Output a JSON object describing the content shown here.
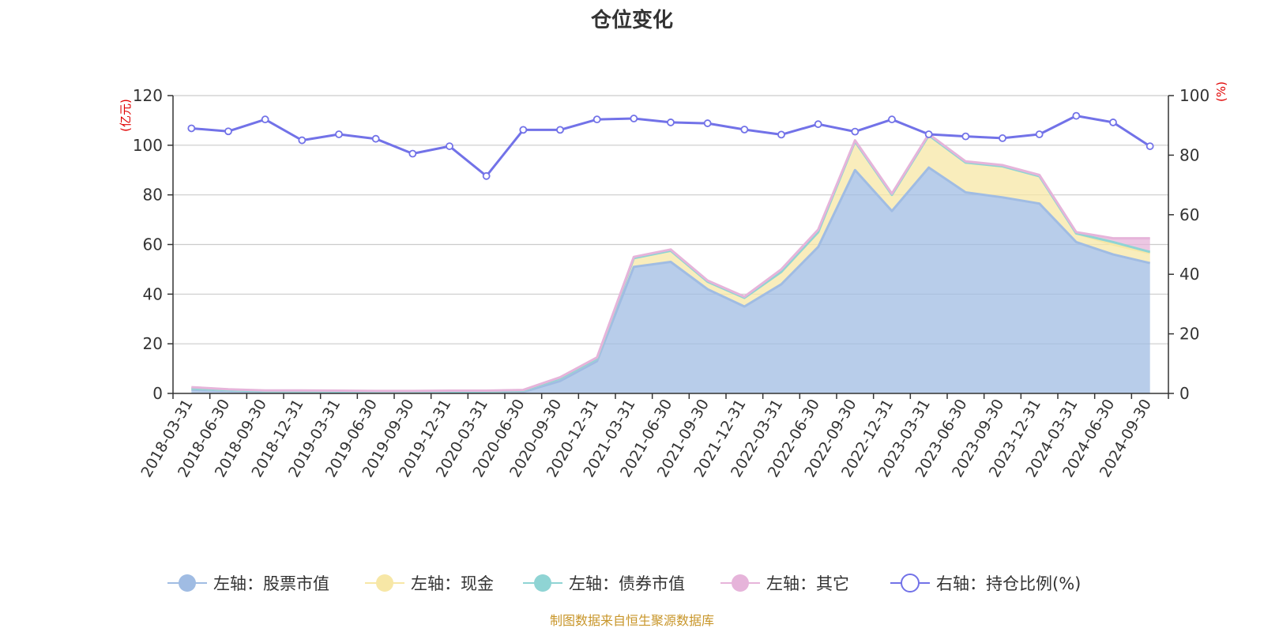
{
  "chart_data": {
    "type": "area",
    "title": "仓位变化",
    "left_unit": "(亿元)",
    "right_unit": "(%)",
    "left_ylim": [
      0,
      120
    ],
    "left_ticks": [
      "0",
      "20",
      "40",
      "60",
      "80",
      "100",
      "120"
    ],
    "right_ylim": [
      0,
      100
    ],
    "right_ticks": [
      "0",
      "20",
      "40",
      "60",
      "80",
      "100"
    ],
    "categories": [
      "2018-03-31",
      "2018-06-30",
      "2018-09-30",
      "2018-12-31",
      "2019-03-31",
      "2019-06-30",
      "2019-09-30",
      "2019-12-31",
      "2020-03-31",
      "2020-06-30",
      "2020-09-30",
      "2020-12-31",
      "2021-03-31",
      "2021-06-30",
      "2021-09-30",
      "2021-12-31",
      "2022-03-31",
      "2022-06-30",
      "2022-09-30",
      "2022-12-31",
      "2023-03-31",
      "2023-06-30",
      "2023-09-30",
      "2023-12-31",
      "2024-03-31",
      "2024-06-30",
      "2024-09-30"
    ],
    "series": [
      {
        "name": "左轴：股票市值",
        "axis": "left",
        "stack": true,
        "color": "#a0bce3",
        "values": [
          1.5,
          1.0,
          0.6,
          0.6,
          0.5,
          0.4,
          0.4,
          0.4,
          0.5,
          0.6,
          5.0,
          13.0,
          51.0,
          53.0,
          42.0,
          35.0,
          44.0,
          59.0,
          90.0,
          73.5,
          91.0,
          81.0,
          79.0,
          76.5,
          61.0,
          56.0,
          52.5
        ]
      },
      {
        "name": "左轴：现金",
        "axis": "left",
        "stack": true,
        "color": "#f7e7a6",
        "values": [
          0.5,
          0.3,
          0.3,
          0.3,
          0.3,
          0.3,
          0.3,
          0.4,
          0.3,
          0.5,
          1.0,
          1.0,
          3.5,
          4.5,
          3.0,
          3.5,
          5.0,
          6.0,
          11.5,
          6.5,
          13.0,
          12.0,
          12.5,
          11.0,
          3.5,
          4.0,
          4.0
        ]
      },
      {
        "name": "左轴：债券市值",
        "axis": "left",
        "stack": true,
        "color": "#8fd4d4",
        "values": [
          0,
          0,
          0,
          0,
          0,
          0,
          0,
          0,
          0,
          0,
          0,
          0,
          0,
          0,
          0,
          0,
          0,
          0,
          0,
          0,
          0,
          0,
          0,
          0,
          0,
          1.0,
          0.5
        ]
      },
      {
        "name": "左轴：其它",
        "axis": "left",
        "stack": true,
        "color": "#e6b4da",
        "values": [
          0.5,
          0.4,
          0.3,
          0.3,
          0.3,
          0.3,
          0.3,
          0.3,
          0.3,
          0.3,
          0.5,
          0.5,
          0.5,
          0.5,
          0.5,
          0.5,
          1.0,
          1.0,
          0.5,
          0.5,
          0.5,
          0.5,
          0.5,
          0.5,
          0.5,
          1.5,
          5.5
        ]
      },
      {
        "name": "右轴：持仓比例(%)",
        "axis": "right",
        "stack": false,
        "color": "#7272e8",
        "values": [
          89,
          88,
          92,
          85,
          87,
          85.5,
          80.5,
          83,
          73,
          88.5,
          88.5,
          92,
          92.3,
          91,
          90.7,
          88.6,
          86.9,
          90.4,
          87.9,
          92,
          87,
          86.3,
          85.7,
          87,
          93.2,
          91,
          83
        ]
      }
    ]
  },
  "source_text": "制图数据来自恒生聚源数据库"
}
